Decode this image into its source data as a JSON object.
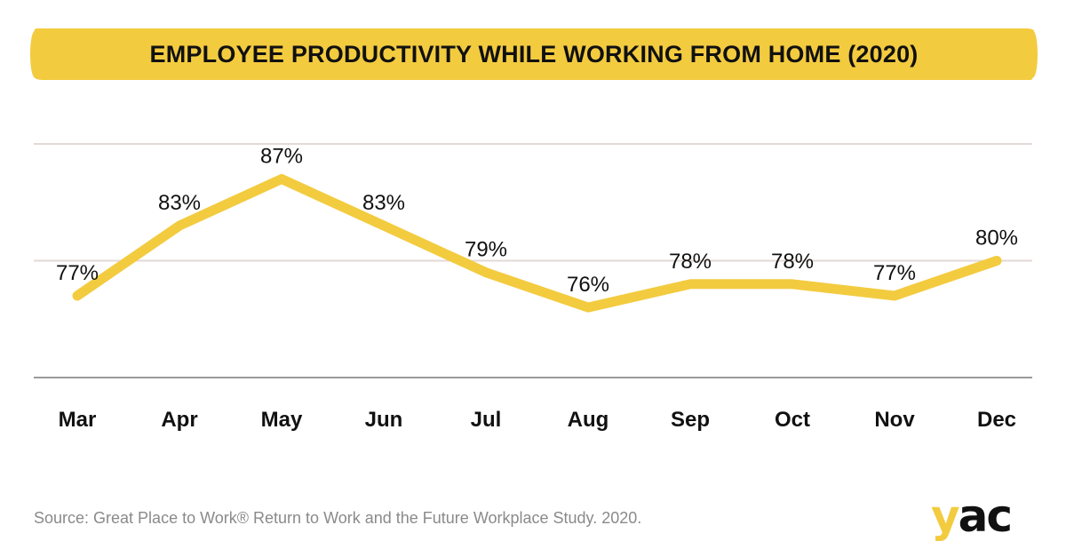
{
  "title": "EMPLOYEE PRODUCTIVITY WHILE WORKING FROM HOME (2020)",
  "source": "Source: Great Place to Work® Return to Work and the Future Workplace Study. 2020.",
  "logo_text": "yac",
  "colors": {
    "accent": "#F3CB3F",
    "gridline": "#e3d9d6",
    "axis": "#9a9a9a",
    "text": "#111111",
    "muted": "#8a8a8a"
  },
  "chart_data": {
    "type": "line",
    "categories": [
      "Mar",
      "Apr",
      "May",
      "Jun",
      "Jul",
      "Aug",
      "Sep",
      "Oct",
      "Nov",
      "Dec"
    ],
    "values": [
      77,
      83,
      87,
      83,
      79,
      76,
      78,
      78,
      77,
      80
    ],
    "data_labels": [
      "77%",
      "83%",
      "87%",
      "83%",
      "79%",
      "76%",
      "78%",
      "78%",
      "77%",
      "80%"
    ],
    "ylim": [
      70,
      90
    ],
    "gridlines": [
      80,
      90
    ],
    "title": "EMPLOYEE PRODUCTIVITY WHILE WORKING FROM HOME (2020)",
    "xlabel": "",
    "ylabel": ""
  }
}
